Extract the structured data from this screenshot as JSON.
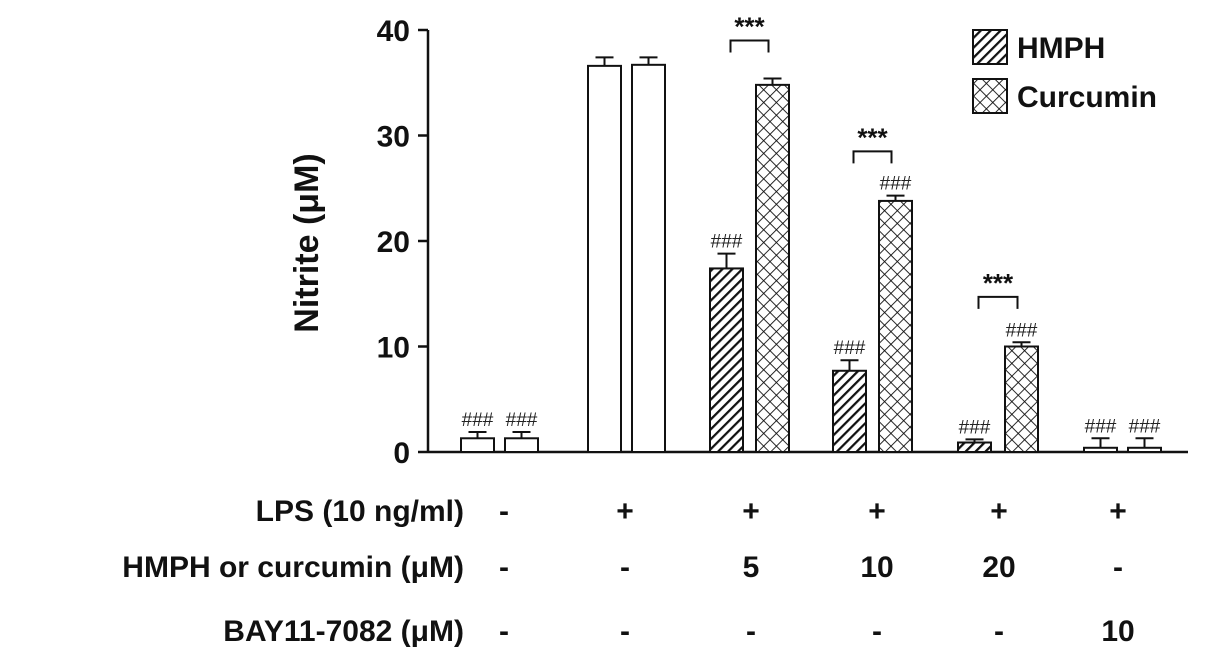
{
  "chart_data": {
    "type": "bar",
    "ylabel": "Nitrite (μM)",
    "ylim": [
      0,
      40
    ],
    "yticks": [
      0,
      10,
      20,
      30,
      40
    ],
    "legend": [
      {
        "name": "HMPH",
        "pattern": "diagonal"
      },
      {
        "name": "Curcumin",
        "pattern": "crosshatch"
      }
    ],
    "bars": [
      {
        "group": 0,
        "pattern": "white",
        "value": 1.3,
        "error": 0.6,
        "label": "###"
      },
      {
        "group": 0,
        "pattern": "white",
        "value": 1.3,
        "error": 0.6,
        "label": "###"
      },
      {
        "group": 1,
        "pattern": "white",
        "value": 36.6,
        "error": 0.8,
        "label": ""
      },
      {
        "group": 1,
        "pattern": "white",
        "value": 36.7,
        "error": 0.7,
        "label": ""
      },
      {
        "group": 2,
        "pattern": "diagonal",
        "value": 17.4,
        "error": 1.4,
        "label": "###"
      },
      {
        "group": 2,
        "pattern": "crosshatch",
        "value": 34.8,
        "error": 0.6,
        "label": ""
      },
      {
        "group": 3,
        "pattern": "diagonal",
        "value": 7.7,
        "error": 1.0,
        "label": "###"
      },
      {
        "group": 3,
        "pattern": "crosshatch",
        "value": 23.8,
        "error": 0.5,
        "label": "###"
      },
      {
        "group": 4,
        "pattern": "diagonal",
        "value": 0.9,
        "error": 0.3,
        "label": "###"
      },
      {
        "group": 4,
        "pattern": "crosshatch",
        "value": 10.0,
        "error": 0.4,
        "label": "###"
      },
      {
        "group": 5,
        "pattern": "white",
        "value": 0.4,
        "error": 0.9,
        "label": "###"
      },
      {
        "group": 5,
        "pattern": "white",
        "value": 0.4,
        "error": 0.9,
        "label": "###"
      }
    ],
    "significance": [
      {
        "group": 2,
        "label": "***",
        "y": 39.0
      },
      {
        "group": 3,
        "label": "***",
        "y": 28.5
      },
      {
        "group": 4,
        "label": "***",
        "y": 14.7
      }
    ],
    "condition_rows": [
      {
        "label": "LPS (10 ng/ml)",
        "values": [
          "-",
          "+",
          "+",
          "+",
          "+",
          "+"
        ]
      },
      {
        "label": "HMPH or curcumin (μM)",
        "values": [
          "-",
          "-",
          "5",
          "10",
          "20",
          "-"
        ]
      },
      {
        "label": "BAY11-7082 (μM)",
        "values": [
          "-",
          "-",
          "-",
          "-",
          "-",
          "10"
        ]
      }
    ]
  }
}
